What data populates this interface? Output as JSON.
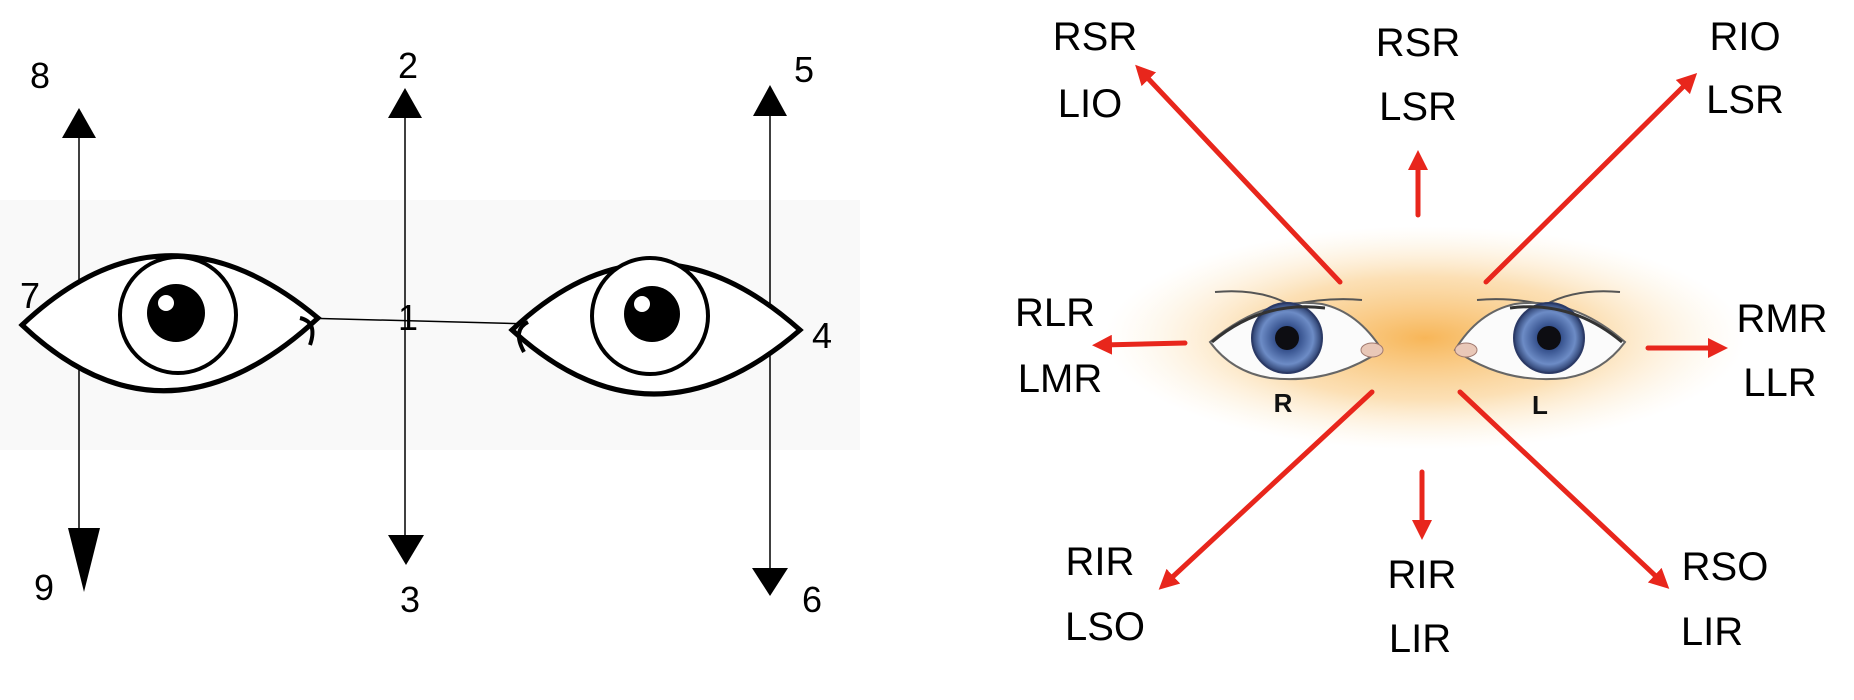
{
  "left_diagram": {
    "position_labels": [
      "1",
      "2",
      "3",
      "4",
      "5",
      "6",
      "7",
      "8",
      "9"
    ]
  },
  "right_diagram": {
    "eye_labels": {
      "right": "R",
      "left": "L"
    },
    "gaze_labels": {
      "up_right": [
        "RSR",
        "LIO"
      ],
      "up": [
        "RSR",
        "LSR"
      ],
      "up_left": [
        "RIO",
        "LSR"
      ],
      "right": [
        "RLR",
        "LMR"
      ],
      "left": [
        "RMR",
        "LLR"
      ],
      "down_right": [
        "RIR",
        "LSO"
      ],
      "down": [
        "RIR",
        "LIR"
      ],
      "down_left": [
        "RSO",
        "LIR"
      ]
    },
    "colors": {
      "arrow": "#e8261c",
      "glow": "#f7b24a",
      "iris": "#4a6aa8"
    }
  }
}
